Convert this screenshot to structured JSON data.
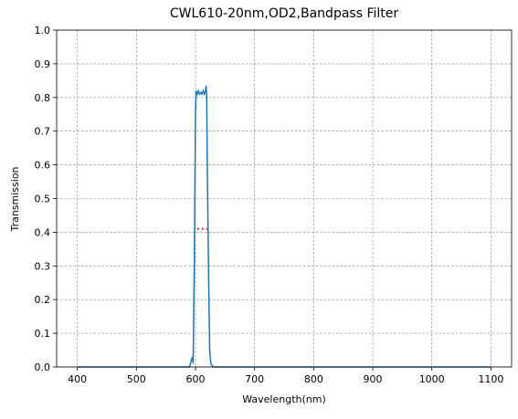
{
  "chart_data": {
    "type": "line",
    "title": "CWL610-20nm,OD2,Bandpass Filter",
    "x_label": "Wavelength(nm)",
    "y_label": "Transmission",
    "xlim": [
      365,
      1135
    ],
    "ylim": [
      0,
      1
    ],
    "xticks": [
      400,
      500,
      600,
      700,
      800,
      900,
      1000,
      1100
    ],
    "yticks": [
      {
        "value": 0,
        "label": "0.0"
      },
      {
        "value": 0.1,
        "label": "0.1"
      },
      {
        "value": 0.2,
        "label": "0.2"
      },
      {
        "value": 0.3,
        "label": "0.3"
      },
      {
        "value": 0.4,
        "label": "0.4"
      },
      {
        "value": 0.5,
        "label": "0.5"
      },
      {
        "value": 0.6,
        "label": "0.6"
      },
      {
        "value": 0.7,
        "label": "0.7"
      },
      {
        "value": 0.8,
        "label": "0.8"
      },
      {
        "value": 0.9,
        "label": "0.9"
      },
      {
        "value": 1,
        "label": "1.0"
      }
    ],
    "grid": true,
    "series": [
      {
        "color": "#1f77b4",
        "style": "solid",
        "x": [
          400,
          590,
          593,
          595,
          596,
          598,
          600,
          601,
          603,
          605,
          607,
          609,
          611,
          613,
          615,
          617,
          618,
          619,
          620,
          622,
          624,
          626,
          630,
          700,
          1100
        ],
        "values": [
          0,
          0,
          0.02,
          0.03,
          0.01,
          0.3,
          0.75,
          0.82,
          0.81,
          0.82,
          0.81,
          0.815,
          0.81,
          0.82,
          0.81,
          0.82,
          0.835,
          0.8,
          0.6,
          0.3,
          0.05,
          0.01,
          0,
          0,
          0
        ]
      },
      {
        "color": "#d62728",
        "style": "dotted",
        "x": [
          603,
          620
        ],
        "values": [
          0.41,
          0.41
        ]
      }
    ]
  }
}
